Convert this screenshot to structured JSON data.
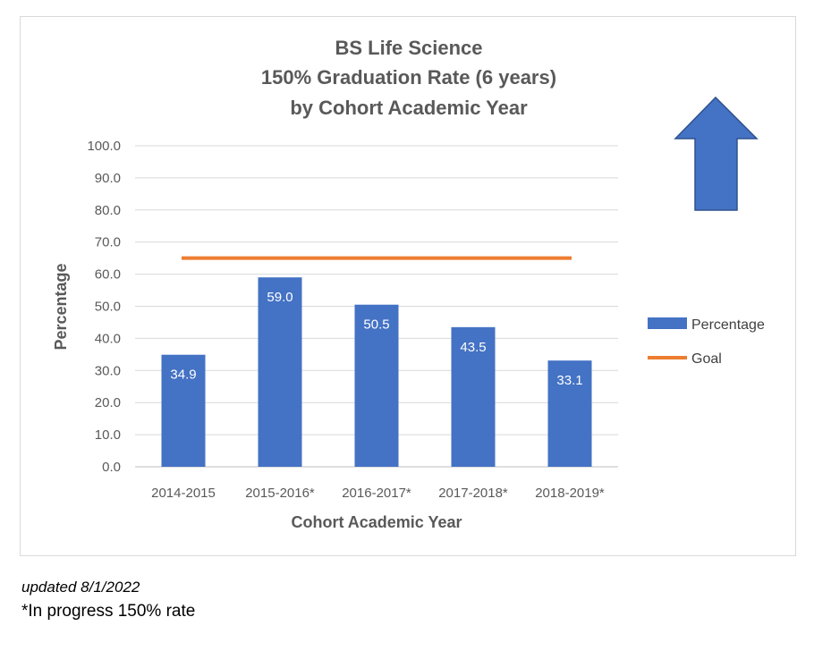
{
  "chart_data": {
    "type": "bar",
    "title_lines": [
      "BS Life Science",
      "150% Graduation Rate (6 years)",
      "by Cohort Academic Year"
    ],
    "xlabel": "Cohort Academic Year",
    "ylabel": "Percentage",
    "categories": [
      "2014-2015",
      "2015-2016*",
      "2016-2017*",
      "2017-2018*",
      "2018-2019*"
    ],
    "series": [
      {
        "name": "Percentage",
        "values": [
          34.9,
          59.0,
          50.5,
          43.5,
          33.1
        ],
        "labels": [
          "34.9",
          "59.0",
          "50.5",
          "43.5",
          "33.1"
        ],
        "color": "#4472C4"
      }
    ],
    "goal": {
      "name": "Goal",
      "value": 65.0,
      "color": "#ED7D31"
    },
    "ylim": [
      0,
      100
    ],
    "yticks": [
      "0.0",
      "10.0",
      "20.0",
      "30.0",
      "40.0",
      "50.0",
      "60.0",
      "70.0",
      "80.0",
      "90.0",
      "100.0"
    ],
    "grid": true,
    "legend_placement": "right",
    "annotation": "up-arrow"
  },
  "notes": {
    "updated": "updated 8/1/2022",
    "in_progress": "*In progress 150% rate"
  }
}
